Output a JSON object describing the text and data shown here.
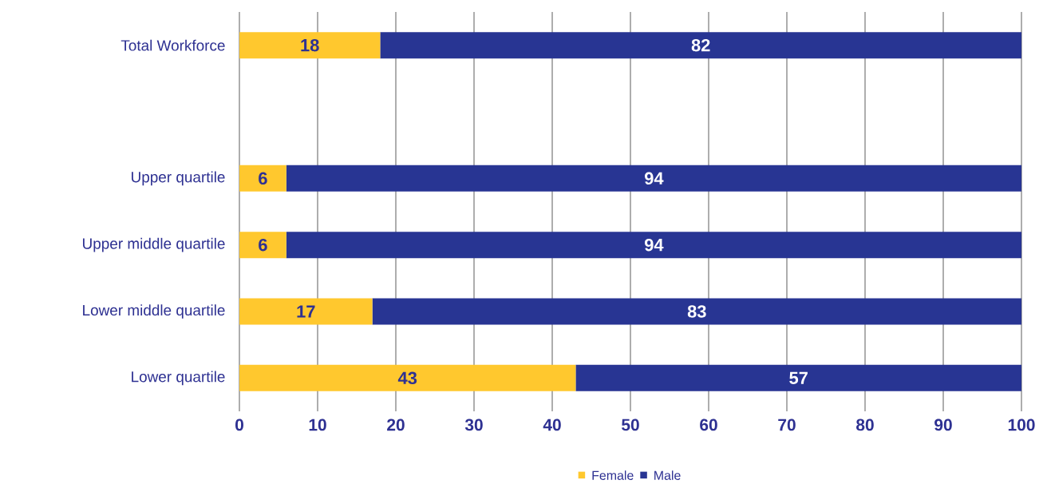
{
  "chart_data": {
    "type": "bar",
    "orientation": "horizontal",
    "stacked": true,
    "categories": [
      "Total Workforce",
      null,
      "Upper quartile",
      "Upper middle quartile",
      "Lower middle quartile",
      "Lower quartile"
    ],
    "series": [
      {
        "name": "Female",
        "color": "#ffc82e",
        "values": [
          18,
          null,
          6,
          6,
          17,
          43
        ]
      },
      {
        "name": "Male",
        "color": "#283593",
        "values": [
          82,
          null,
          94,
          94,
          83,
          57
        ]
      }
    ],
    "xlim": [
      0,
      100
    ],
    "xticks": [
      0,
      10,
      20,
      30,
      40,
      50,
      60,
      70,
      80,
      90,
      100
    ],
    "grid": "x",
    "legend": "bottom",
    "data_labels": true
  }
}
